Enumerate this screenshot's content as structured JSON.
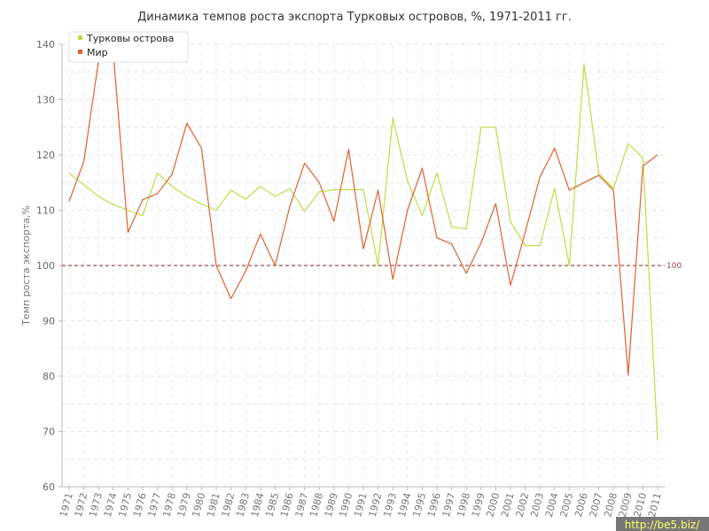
{
  "chart_data": {
    "type": "line",
    "title": "Динамика темпов роста экспорта Турковых островов, %, 1971-2011 гг.",
    "ylabel": "Темп роста экспорта,%",
    "xlabel": "",
    "ylim": [
      60,
      140
    ],
    "yticks": [
      "60",
      "70",
      "80",
      "90",
      "100",
      "110",
      "120",
      "130",
      "140"
    ],
    "x": [
      "1971",
      "1972",
      "1973",
      "1974",
      "1975",
      "1976",
      "1977",
      "1978",
      "1979",
      "1980",
      "1981",
      "1982",
      "1983",
      "1984",
      "1985",
      "1986",
      "1987",
      "1988",
      "1989",
      "1990",
      "1991",
      "1992",
      "1993",
      "1994",
      "1995",
      "1996",
      "1997",
      "1998",
      "1999",
      "2000",
      "2001",
      "2002",
      "2003",
      "2004",
      "2005",
      "2006",
      "2007",
      "2008",
      "2009",
      "2010",
      "2011"
    ],
    "series": [
      {
        "name": "Турковы острова",
        "color": "#bbdd44",
        "values": [
          116.7,
          114.6,
          112.5,
          111.0,
          110.0,
          109.0,
          116.7,
          114.3,
          112.5,
          111.1,
          110.0,
          113.6,
          112.0,
          114.3,
          112.5,
          113.9,
          109.8,
          113.3,
          113.7,
          113.7,
          113.7,
          100.0,
          126.7,
          115.3,
          109.0,
          116.7,
          107.0,
          106.6,
          125.0,
          125.0,
          107.9,
          103.6,
          103.6,
          113.9,
          100.0,
          136.4,
          116.7,
          113.9,
          122.0,
          119.5,
          68.3
        ]
      },
      {
        "name": "Мир",
        "color": "#e06030",
        "values": [
          111.6,
          118.8,
          137.0,
          138.5,
          106.0,
          111.9,
          113.0,
          116.5,
          125.7,
          121.2,
          100.0,
          94.0,
          99.0,
          105.7,
          100.0,
          110.7,
          118.5,
          115.0,
          108.0,
          121.0,
          103.0,
          113.6,
          97.5,
          110.0,
          117.6,
          105.0,
          103.9,
          98.6,
          104.1,
          111.2,
          96.4,
          106.0,
          116.0,
          121.2,
          113.6,
          115.0,
          116.3,
          113.6,
          80.2,
          118.0,
          120.0
        ]
      }
    ],
    "reference_line": {
      "value": 100,
      "label": "100",
      "color": "#8b2020"
    },
    "grid": true,
    "legend": "top-left"
  },
  "watermark": "http://be5.biz/"
}
